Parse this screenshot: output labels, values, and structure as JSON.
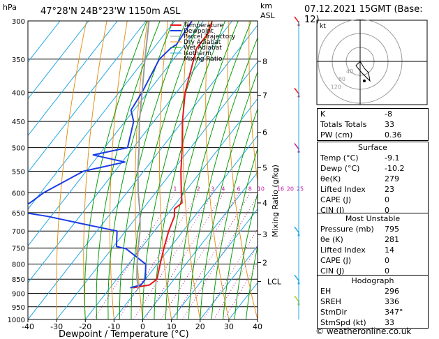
{
  "header": {
    "left_unit": "hPa",
    "title": "47°28'N  24B°23'W  1150m  ASL",
    "km_unit": "km",
    "asl_unit": "ASL",
    "datetime": "07.12.2021  15GMT  (Base: 12)"
  },
  "footer": "© weatheronline.co.uk",
  "chart_data": {
    "type": "line",
    "title": "47°28'N  24B°23'W  1150m  ASL",
    "xlabel": "Dewpoint / Temperature (°C)",
    "ylabel": "hPa",
    "right_axis_label": "Mixing Ratio (g/kg)",
    "pressure_levels": [
      300,
      350,
      400,
      450,
      500,
      550,
      600,
      650,
      700,
      750,
      800,
      850,
      900,
      950,
      1000
    ],
    "xlim": [
      -40,
      40
    ],
    "x_ticks": [
      -40,
      -30,
      -20,
      -10,
      0,
      10,
      20,
      30,
      40
    ],
    "ylim": [
      1000,
      300
    ],
    "skew": "temperature isotherms skewed to the right with height",
    "km_ticks": [
      {
        "label": "8",
        "p": 353
      },
      {
        "label": "7",
        "p": 405
      },
      {
        "label": "6",
        "p": 470
      },
      {
        "label": "5",
        "p": 542
      },
      {
        "label": "4",
        "p": 625
      },
      {
        "label": "3",
        "p": 710
      },
      {
        "label": "2",
        "p": 795
      },
      {
        "label": "LCL",
        "p": 858
      }
    ],
    "mixing_ratio_labels": [
      "1",
      "2",
      "3",
      "4",
      "6",
      "8",
      "10",
      "16",
      "20",
      "25"
    ],
    "mixing_ratio_values": [
      1,
      2,
      3,
      4,
      6,
      8,
      10,
      16,
      20,
      25
    ],
    "legend": {
      "placement": "top-left",
      "entries": [
        {
          "name": "Temperature",
          "color": "#e8161e"
        },
        {
          "name": "Dewpoint",
          "color": "#1e3ce6"
        },
        {
          "name": "Parcel Trajectory",
          "color": "#999999"
        },
        {
          "name": "Dry Adiabat",
          "color": "#e3931b"
        },
        {
          "name": "Wet Adiabat",
          "color": "#0a9e0a"
        },
        {
          "name": "Isotherm",
          "color": "#21a7e3"
        },
        {
          "name": "Mixing Ratio",
          "color": "#c2169e"
        }
      ]
    },
    "series": [
      {
        "name": "Temperature",
        "color": "#e8161e",
        "points": [
          {
            "p": 300,
            "t": -57
          },
          {
            "p": 315,
            "t": -55
          },
          {
            "p": 335,
            "t": -55
          },
          {
            "p": 350,
            "t": -53
          },
          {
            "p": 400,
            "t": -47
          },
          {
            "p": 450,
            "t": -40
          },
          {
            "p": 500,
            "t": -33
          },
          {
            "p": 550,
            "t": -27
          },
          {
            "p": 600,
            "t": -21
          },
          {
            "p": 625,
            "t": -18
          },
          {
            "p": 640,
            "t": -19
          },
          {
            "p": 660,
            "t": -17
          },
          {
            "p": 700,
            "t": -15
          },
          {
            "p": 750,
            "t": -12
          },
          {
            "p": 800,
            "t": -9
          },
          {
            "p": 850,
            "t": -6
          },
          {
            "p": 870,
            "t": -7
          },
          {
            "p": 880,
            "t": -12
          }
        ]
      },
      {
        "name": "Dewpoint",
        "color": "#1e3ce6",
        "points": [
          {
            "p": 300,
            "t": -64
          },
          {
            "p": 330,
            "t": -63
          },
          {
            "p": 335,
            "t": -64
          },
          {
            "p": 350,
            "t": -65
          },
          {
            "p": 400,
            "t": -62
          },
          {
            "p": 430,
            "t": -61
          },
          {
            "p": 450,
            "t": -57
          },
          {
            "p": 500,
            "t": -52
          },
          {
            "p": 515,
            "t": -62
          },
          {
            "p": 530,
            "t": -49
          },
          {
            "p": 550,
            "t": -61
          },
          {
            "p": 600,
            "t": -69
          },
          {
            "p": 625,
            "t": -71
          },
          {
            "p": 645,
            "t": -75
          },
          {
            "p": 660,
            "t": -61
          },
          {
            "p": 680,
            "t": -47
          },
          {
            "p": 700,
            "t": -33
          },
          {
            "p": 745,
            "t": -29
          },
          {
            "p": 752,
            "t": -25
          },
          {
            "p": 800,
            "t": -14
          },
          {
            "p": 850,
            "t": -10
          },
          {
            "p": 870,
            "t": -10
          },
          {
            "p": 880,
            "t": -13
          }
        ]
      },
      {
        "name": "Parcel Trajectory",
        "color": "#999999",
        "points": [
          {
            "p": 880,
            "t": -10
          },
          {
            "p": 850,
            "t": -13
          },
          {
            "p": 800,
            "t": -17
          },
          {
            "p": 750,
            "t": -21
          },
          {
            "p": 700,
            "t": -25
          },
          {
            "p": 650,
            "t": -30
          },
          {
            "p": 600,
            "t": -36
          },
          {
            "p": 550,
            "t": -42
          },
          {
            "p": 500,
            "t": -48
          },
          {
            "p": 450,
            "t": -55
          },
          {
            "p": 400,
            "t": -62
          },
          {
            "p": 350,
            "t": -70
          },
          {
            "p": 300,
            "t": -79
          }
        ]
      }
    ]
  },
  "hodograph": {
    "unit_label": "kt",
    "ring_labels": [
      "40",
      "80",
      "120"
    ],
    "points": [
      [
        0,
        0
      ],
      [
        3,
        -5
      ],
      [
        6,
        -8
      ],
      [
        7,
        -14
      ],
      [
        1,
        -8
      ],
      [
        -3,
        -3
      ],
      [
        0,
        0
      ]
    ]
  },
  "indices": {
    "rows": [
      {
        "label": "K",
        "value": "-8"
      },
      {
        "label": "Totals Totals",
        "value": "33"
      },
      {
        "label": "PW (cm)",
        "value": "0.36"
      }
    ]
  },
  "surface": {
    "title": "Surface",
    "rows": [
      {
        "label": "Temp (°C)",
        "value": "-9.1"
      },
      {
        "label": "Dewp (°C)",
        "value": "-10.2"
      },
      {
        "label": "θe(K)",
        "value": "279"
      },
      {
        "label": "Lifted Index",
        "value": "23"
      },
      {
        "label": "CAPE (J)",
        "value": "0"
      },
      {
        "label": "CIN (J)",
        "value": "0"
      }
    ]
  },
  "most_unstable": {
    "title": "Most Unstable",
    "rows": [
      {
        "label": "Pressure (mb)",
        "value": "795"
      },
      {
        "label": "θe (K)",
        "value": "281"
      },
      {
        "label": "Lifted Index",
        "value": "14"
      },
      {
        "label": "CAPE (J)",
        "value": "0"
      },
      {
        "label": "CIN (J)",
        "value": "0"
      }
    ]
  },
  "hodograph_table": {
    "title": "Hodograph",
    "rows": [
      {
        "label": "EH",
        "value": "296"
      },
      {
        "label": "SREH",
        "value": "336"
      },
      {
        "label": "StmDir",
        "value": "347°"
      },
      {
        "label": "StmSpd (kt)",
        "value": "33"
      }
    ]
  },
  "wind_barbs": [
    {
      "p": 300,
      "color": "#e8161e"
    },
    {
      "p": 400,
      "color": "#e8161e"
    },
    {
      "p": 500,
      "color": "#c2169e"
    },
    {
      "p": 700,
      "color": "#21a7e3"
    },
    {
      "p": 850,
      "color": "#21a7e3"
    },
    {
      "p": 925,
      "color": "#9ecf1e"
    }
  ]
}
